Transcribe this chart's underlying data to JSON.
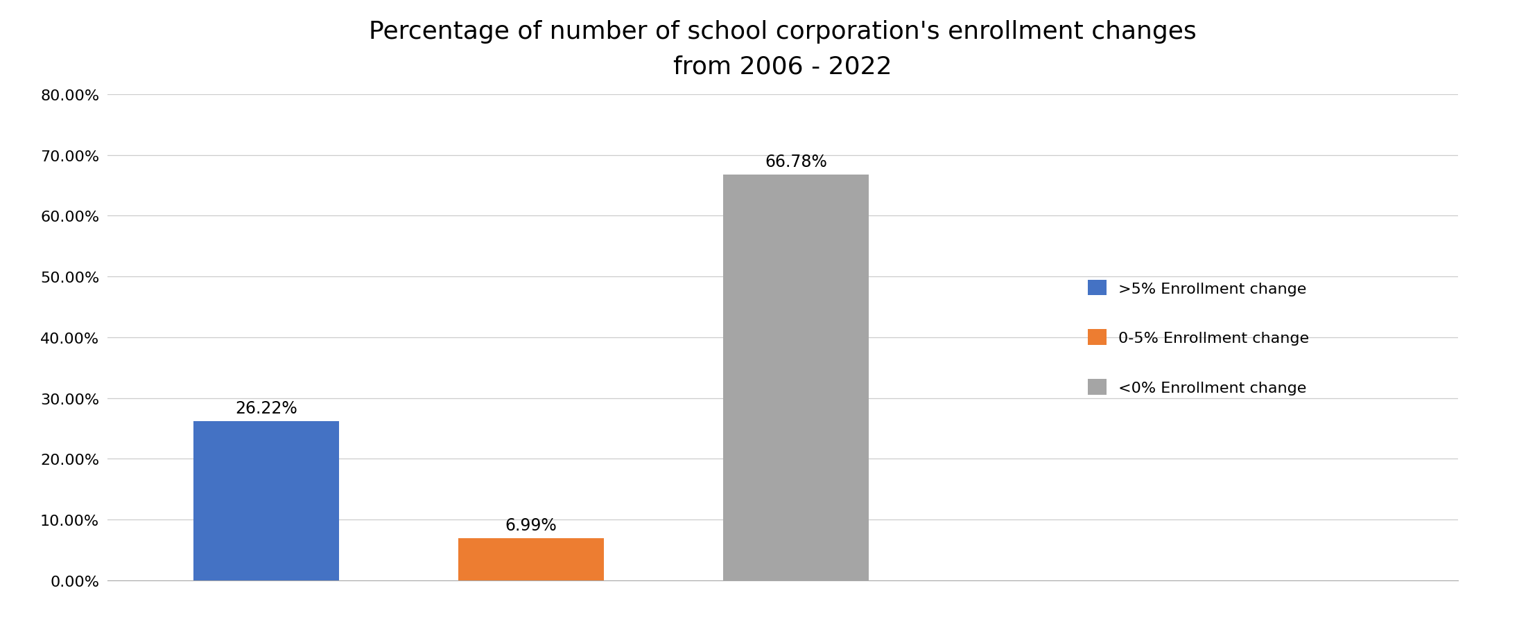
{
  "title_line1": "Percentage of number of school corporation's enrollment changes",
  "title_line2": "from 2006 - 2022",
  "categories": [
    ">5% Enrollment change",
    "0-5% Enrollment change",
    "<0% Enrollment change"
  ],
  "values": [
    26.22,
    6.99,
    66.78
  ],
  "bar_colors": [
    "#4472C4",
    "#ED7D31",
    "#A5A5A5"
  ],
  "bar_labels": [
    "26.22%",
    "6.99%",
    "66.78%"
  ],
  "ylim": [
    0,
    80
  ],
  "yticks": [
    0,
    10,
    20,
    30,
    40,
    50,
    60,
    70,
    80
  ],
  "ytick_labels": [
    "0.00%",
    "10.00%",
    "20.00%",
    "30.00%",
    "40.00%",
    "50.00%",
    "60.00%",
    "70.00%",
    "80.00%"
  ],
  "legend_labels": [
    ">5% Enrollment change",
    "0-5% Enrollment change",
    "<0% Enrollment change"
  ],
  "legend_colors": [
    "#4472C4",
    "#ED7D31",
    "#A5A5A5"
  ],
  "title_fontsize": 26,
  "label_fontsize": 17,
  "tick_fontsize": 16,
  "legend_fontsize": 16,
  "background_color": "#FFFFFF",
  "grid_color": "#CCCCCC",
  "bar_width": 0.55,
  "bar_positions": [
    1,
    2,
    3
  ],
  "xlim_left": 0.4,
  "xlim_right": 5.5
}
